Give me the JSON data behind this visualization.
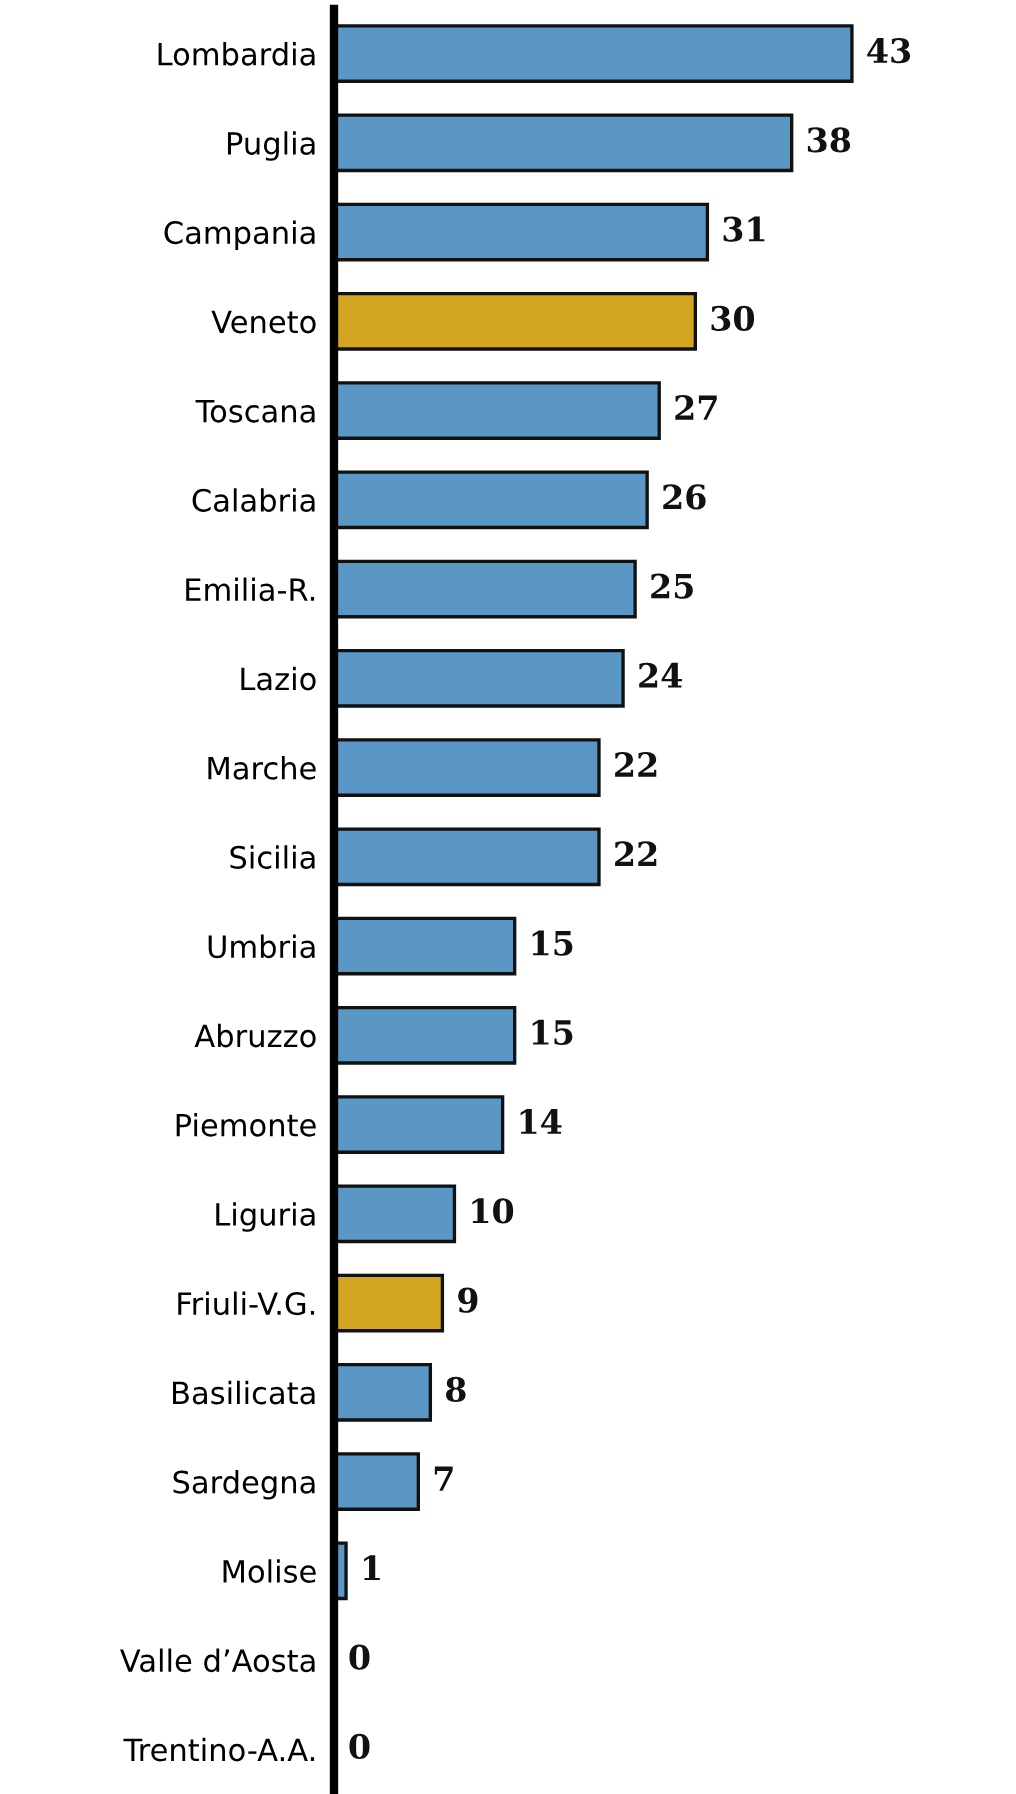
{
  "chart_data": {
    "type": "bar",
    "orientation": "horizontal",
    "categories": [
      "Lombardia",
      "Puglia",
      "Campania",
      "Veneto",
      "Toscana",
      "Calabria",
      "Emilia-R.",
      "Lazio",
      "Marche",
      "Sicilia",
      "Umbria",
      "Abruzzo",
      "Piemonte",
      "Liguria",
      "Friuli-V.G.",
      "Basilicata",
      "Sardegna",
      "Molise",
      "Valle d’Aosta",
      "Trentino-A.A."
    ],
    "values": [
      43,
      38,
      31,
      30,
      27,
      26,
      25,
      24,
      22,
      22,
      15,
      15,
      14,
      10,
      9,
      8,
      7,
      1,
      0,
      0
    ],
    "colors": [
      "#5b97c4",
      "#5b97c4",
      "#5b97c4",
      "#d4a520",
      "#5b97c4",
      "#5b97c4",
      "#5b97c4",
      "#5b97c4",
      "#5b97c4",
      "#5b97c4",
      "#5b97c4",
      "#5b97c4",
      "#5b97c4",
      "#5b97c4",
      "#d4a520",
      "#5b97c4",
      "#5b97c4",
      "#5b97c4",
      "#5b97c4",
      "#5b97c4"
    ],
    "data_labels": true
  }
}
